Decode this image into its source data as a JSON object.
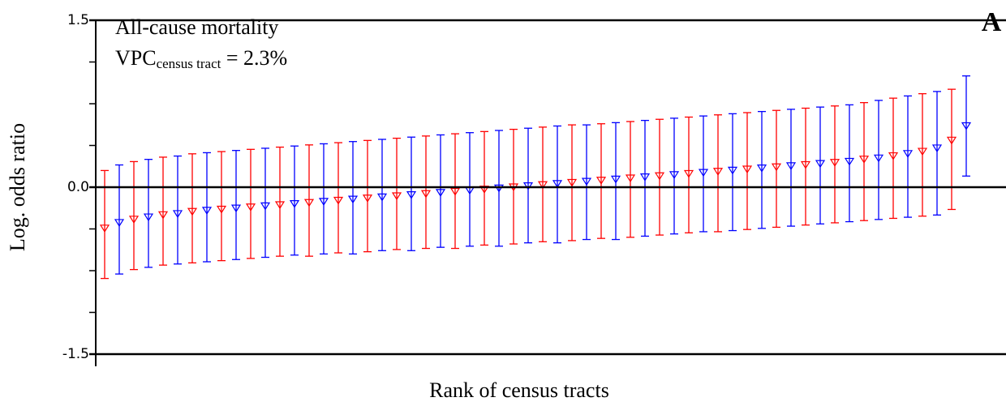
{
  "chart_data": {
    "type": "caterpillar",
    "panel": "A",
    "annotation": "All-cause mortality",
    "vpc": {
      "label": "VPC",
      "subscript": "census tract",
      "text": " = 2.3%"
    },
    "ylabel": "Log. odds ratio",
    "xlabel": "Rank of census tracts",
    "ylim": [
      -1.5,
      1.5
    ],
    "yticks": [
      -1.5,
      {
        "value": 0,
        "label": "0.0"
      },
      1.5
    ],
    "yminorticks": [
      1.125,
      0.75,
      0.375,
      -0.375,
      -0.75,
      -1.125
    ],
    "colors": [
      "#ff0000",
      "#0000ff"
    ],
    "values": [
      -0.37,
      -0.32,
      -0.29,
      -0.27,
      -0.25,
      -0.24,
      -0.22,
      -0.21,
      -0.2,
      -0.19,
      -0.18,
      -0.17,
      -0.16,
      -0.15,
      -0.14,
      -0.13,
      -0.12,
      -0.11,
      -0.1,
      -0.09,
      -0.08,
      -0.07,
      -0.06,
      -0.05,
      -0.04,
      -0.03,
      -0.02,
      -0.01,
      0.0,
      0.01,
      0.02,
      0.03,
      0.04,
      0.05,
      0.06,
      0.07,
      0.08,
      0.09,
      0.1,
      0.11,
      0.12,
      0.13,
      0.14,
      0.15,
      0.16,
      0.17,
      0.18,
      0.19,
      0.2,
      0.21,
      0.22,
      0.23,
      0.25,
      0.26,
      0.28,
      0.3,
      0.32,
      0.35,
      0.42,
      0.55
    ],
    "lower": [
      -0.82,
      -0.78,
      -0.74,
      -0.72,
      -0.7,
      -0.69,
      -0.68,
      -0.67,
      -0.66,
      -0.65,
      -0.64,
      -0.63,
      -0.62,
      -0.61,
      -0.62,
      -0.6,
      -0.59,
      -0.6,
      -0.58,
      -0.57,
      -0.56,
      -0.57,
      -0.55,
      -0.54,
      -0.55,
      -0.53,
      -0.52,
      -0.53,
      -0.51,
      -0.5,
      -0.49,
      -0.5,
      -0.48,
      -0.47,
      -0.46,
      -0.47,
      -0.45,
      -0.44,
      -0.43,
      -0.42,
      -0.41,
      -0.4,
      -0.4,
      -0.39,
      -0.38,
      -0.37,
      -0.36,
      -0.35,
      -0.34,
      -0.33,
      -0.32,
      -0.31,
      -0.3,
      -0.29,
      -0.28,
      -0.27,
      -0.26,
      -0.25,
      -0.2,
      0.1
    ],
    "upper": [
      0.15,
      0.2,
      0.23,
      0.25,
      0.27,
      0.28,
      0.3,
      0.31,
      0.32,
      0.33,
      0.34,
      0.35,
      0.36,
      0.37,
      0.38,
      0.39,
      0.4,
      0.41,
      0.42,
      0.43,
      0.44,
      0.45,
      0.46,
      0.47,
      0.48,
      0.49,
      0.5,
      0.51,
      0.52,
      0.53,
      0.54,
      0.55,
      0.56,
      0.56,
      0.57,
      0.58,
      0.59,
      0.6,
      0.61,
      0.62,
      0.63,
      0.64,
      0.65,
      0.66,
      0.67,
      0.68,
      0.69,
      0.7,
      0.71,
      0.72,
      0.73,
      0.74,
      0.76,
      0.78,
      0.8,
      0.82,
      0.84,
      0.86,
      0.88,
      1.0
    ]
  }
}
